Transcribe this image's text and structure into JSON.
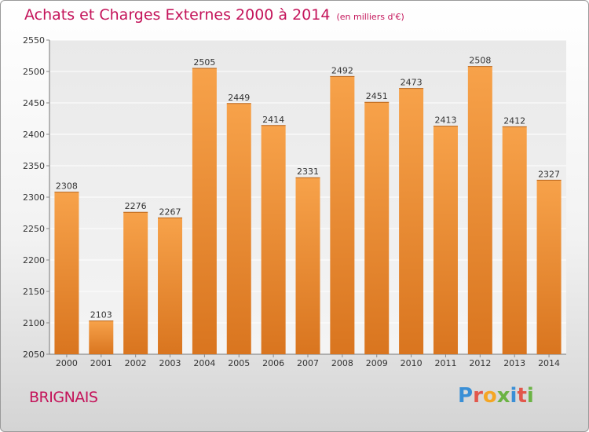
{
  "page": {
    "city": "BRIGNAIS",
    "logo_text": "Proxiti"
  },
  "chart_data": {
    "type": "bar",
    "title": "Achats et Charges Externes 2000 à 2014",
    "subtitle": "(en milliers d'€)",
    "categories": [
      "2000",
      "2001",
      "2002",
      "2003",
      "2004",
      "2005",
      "2006",
      "2007",
      "2008",
      "2009",
      "2010",
      "2011",
      "2012",
      "2013",
      "2014"
    ],
    "values": [
      2308,
      2103,
      2276,
      2267,
      2505,
      2449,
      2414,
      2331,
      2492,
      2451,
      2473,
      2413,
      2508,
      2412,
      2327
    ],
    "ylim": [
      2050,
      2550
    ],
    "yticks": [
      2050,
      2100,
      2150,
      2200,
      2250,
      2300,
      2350,
      2400,
      2450,
      2500,
      2550
    ],
    "grid": true,
    "bar_color_top": "#f7a24a",
    "bar_color_bottom": "#d9751f",
    "text_color": "#c4145a"
  }
}
